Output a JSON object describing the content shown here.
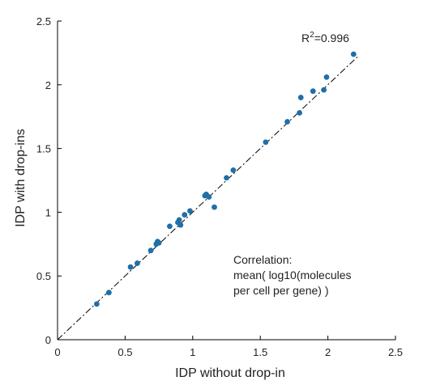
{
  "chart_data": {
    "type": "scatter",
    "title": "",
    "xlabel": "IDP without drop-in",
    "ylabel": "IDP with drop-ins",
    "xlim": [
      0,
      2.5
    ],
    "ylim": [
      0,
      2.5
    ],
    "xticks": [
      "0",
      "0.5",
      "1",
      "1.5",
      "2",
      "2.5"
    ],
    "yticks": [
      "0",
      "0.5",
      "1",
      "1.5",
      "2",
      "2.5"
    ],
    "grid": false,
    "legend": "none",
    "point_color": "#1f6fa8",
    "fit_line": {
      "style": "dash-dot",
      "color": "#000000",
      "from": [
        0,
        0
      ],
      "to": [
        2.22,
        2.22
      ]
    },
    "r2_label": {
      "prefix": "R",
      "sup": "2",
      "value": "=0.996"
    },
    "annotation": [
      "Correlation:",
      "mean( log10(molecules",
      "per cell per gene) )"
    ],
    "points": [
      [
        0.29,
        0.28
      ],
      [
        0.38,
        0.37
      ],
      [
        0.54,
        0.57
      ],
      [
        0.59,
        0.6
      ],
      [
        0.69,
        0.7
      ],
      [
        0.73,
        0.75
      ],
      [
        0.74,
        0.77
      ],
      [
        0.75,
        0.76
      ],
      [
        0.83,
        0.89
      ],
      [
        0.89,
        0.92
      ],
      [
        0.9,
        0.94
      ],
      [
        0.91,
        0.9
      ],
      [
        0.94,
        0.98
      ],
      [
        0.98,
        1.01
      ],
      [
        1.09,
        1.13
      ],
      [
        1.1,
        1.14
      ],
      [
        1.12,
        1.12
      ],
      [
        1.16,
        1.04
      ],
      [
        1.25,
        1.27
      ],
      [
        1.3,
        1.33
      ],
      [
        1.54,
        1.55
      ],
      [
        1.7,
        1.71
      ],
      [
        1.79,
        1.78
      ],
      [
        1.8,
        1.9
      ],
      [
        1.89,
        1.95
      ],
      [
        1.97,
        1.96
      ],
      [
        1.99,
        2.06
      ],
      [
        2.19,
        2.24
      ]
    ]
  }
}
